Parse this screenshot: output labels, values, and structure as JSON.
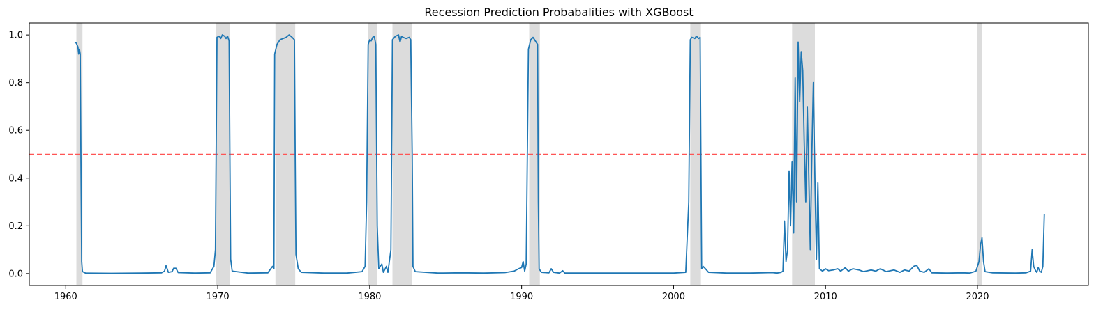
{
  "chart_data": {
    "type": "line",
    "title": "Recession Prediction Probabalities with XGBoost",
    "xlabel": "",
    "ylabel": "",
    "xlim": [
      1957.6,
      2027.3
    ],
    "ylim": [
      -0.05,
      1.05
    ],
    "x_ticks": [
      1960,
      1970,
      1980,
      1990,
      2000,
      2010,
      2020
    ],
    "y_ticks": [
      0.0,
      0.2,
      0.4,
      0.6,
      0.8,
      1.0
    ],
    "y_tick_labels": [
      "0.0",
      "0.2",
      "0.4",
      "0.6",
      "0.8",
      "1.0"
    ],
    "grid": false,
    "threshold": 0.5,
    "colors": {
      "line": "#1f77b4",
      "threshold": "#ff5555",
      "recession_shade": "#dcdcdc"
    },
    "recession_periods": [
      [
        1960.7,
        1961.1
      ],
      [
        1969.9,
        1970.8
      ],
      [
        1973.8,
        1975.1
      ],
      [
        1979.9,
        1980.5
      ],
      [
        1981.5,
        1982.8
      ],
      [
        1990.5,
        1991.2
      ],
      [
        2001.1,
        2001.8
      ],
      [
        2007.8,
        2009.3
      ],
      [
        2020.0,
        2020.3
      ]
    ],
    "series": [
      {
        "points": [
          [
            1960.6,
            0.97
          ],
          [
            1960.7,
            0.965
          ],
          [
            1960.8,
            0.95
          ],
          [
            1960.85,
            0.92
          ],
          [
            1960.9,
            0.94
          ],
          [
            1960.95,
            0.92
          ],
          [
            1961.0,
            0.5
          ],
          [
            1961.05,
            0.05
          ],
          [
            1961.1,
            0.008
          ],
          [
            1961.3,
            0.002
          ],
          [
            1963,
            0.001
          ],
          [
            1965,
            0.002
          ],
          [
            1966.3,
            0.003
          ],
          [
            1966.5,
            0.01
          ],
          [
            1966.6,
            0.033
          ],
          [
            1966.75,
            0.005
          ],
          [
            1967.0,
            0.008
          ],
          [
            1967.1,
            0.022
          ],
          [
            1967.25,
            0.022
          ],
          [
            1967.4,
            0.004
          ],
          [
            1968.5,
            0.002
          ],
          [
            1969.5,
            0.003
          ],
          [
            1969.75,
            0.03
          ],
          [
            1969.85,
            0.1
          ],
          [
            1969.95,
            0.99
          ],
          [
            1970.1,
            0.995
          ],
          [
            1970.2,
            0.985
          ],
          [
            1970.3,
            1.0
          ],
          [
            1970.45,
            0.995
          ],
          [
            1970.55,
            0.985
          ],
          [
            1970.65,
            0.995
          ],
          [
            1970.75,
            0.975
          ],
          [
            1970.8,
            0.5
          ],
          [
            1970.85,
            0.06
          ],
          [
            1970.95,
            0.01
          ],
          [
            1972,
            0.002
          ],
          [
            1973.3,
            0.003
          ],
          [
            1973.6,
            0.03
          ],
          [
            1973.7,
            0.02
          ],
          [
            1973.75,
            0.92
          ],
          [
            1973.9,
            0.96
          ],
          [
            1974.1,
            0.98
          ],
          [
            1974.3,
            0.985
          ],
          [
            1974.5,
            0.99
          ],
          [
            1974.7,
            1.0
          ],
          [
            1974.9,
            0.99
          ],
          [
            1975.05,
            0.98
          ],
          [
            1975.1,
            0.5
          ],
          [
            1975.15,
            0.08
          ],
          [
            1975.3,
            0.02
          ],
          [
            1975.5,
            0.005
          ],
          [
            1977,
            0.002
          ],
          [
            1978.5,
            0.002
          ],
          [
            1979.5,
            0.008
          ],
          [
            1979.7,
            0.03
          ],
          [
            1979.8,
            0.3
          ],
          [
            1979.9,
            0.96
          ],
          [
            1980.0,
            0.98
          ],
          [
            1980.1,
            0.975
          ],
          [
            1980.2,
            0.99
          ],
          [
            1980.3,
            0.995
          ],
          [
            1980.4,
            0.96
          ],
          [
            1980.5,
            0.2
          ],
          [
            1980.6,
            0.02
          ],
          [
            1980.8,
            0.04
          ],
          [
            1980.9,
            0.005
          ],
          [
            1981.1,
            0.03
          ],
          [
            1981.2,
            0.005
          ],
          [
            1981.4,
            0.1
          ],
          [
            1981.5,
            0.98
          ],
          [
            1981.7,
            0.995
          ],
          [
            1981.9,
            1.0
          ],
          [
            1982.0,
            0.97
          ],
          [
            1982.1,
            0.995
          ],
          [
            1982.2,
            0.99
          ],
          [
            1982.4,
            0.985
          ],
          [
            1982.6,
            0.99
          ],
          [
            1982.7,
            0.98
          ],
          [
            1982.8,
            0.5
          ],
          [
            1982.85,
            0.03
          ],
          [
            1983.0,
            0.008
          ],
          [
            1984.5,
            0.002
          ],
          [
            1986,
            0.003
          ],
          [
            1987.5,
            0.002
          ],
          [
            1988.9,
            0.004
          ],
          [
            1989.5,
            0.01
          ],
          [
            1989.8,
            0.02
          ],
          [
            1990.0,
            0.025
          ],
          [
            1990.1,
            0.05
          ],
          [
            1990.2,
            0.01
          ],
          [
            1990.3,
            0.04
          ],
          [
            1990.45,
            0.94
          ],
          [
            1990.6,
            0.98
          ],
          [
            1990.75,
            0.99
          ],
          [
            1990.85,
            0.98
          ],
          [
            1990.95,
            0.97
          ],
          [
            1991.05,
            0.96
          ],
          [
            1991.1,
            0.3
          ],
          [
            1991.15,
            0.02
          ],
          [
            1991.3,
            0.005
          ],
          [
            1991.8,
            0.003
          ],
          [
            1991.95,
            0.02
          ],
          [
            1992.1,
            0.005
          ],
          [
            1992.5,
            0.002
          ],
          [
            1992.7,
            0.012
          ],
          [
            1992.85,
            0.002
          ],
          [
            1994,
            0.002
          ],
          [
            1996,
            0.002
          ],
          [
            1998,
            0.002
          ],
          [
            2000,
            0.002
          ],
          [
            2000.8,
            0.005
          ],
          [
            2001.0,
            0.3
          ],
          [
            2001.1,
            0.98
          ],
          [
            2001.2,
            0.99
          ],
          [
            2001.4,
            0.985
          ],
          [
            2001.5,
            0.995
          ],
          [
            2001.65,
            0.985
          ],
          [
            2001.75,
            0.99
          ],
          [
            2001.85,
            0.02
          ],
          [
            2001.95,
            0.03
          ],
          [
            2002.1,
            0.02
          ],
          [
            2002.3,
            0.005
          ],
          [
            2003.5,
            0.002
          ],
          [
            2005,
            0.002
          ],
          [
            2006.5,
            0.004
          ],
          [
            2006.8,
            0.002
          ],
          [
            2007.0,
            0.004
          ],
          [
            2007.1,
            0.006
          ],
          [
            2007.2,
            0.01
          ],
          [
            2007.3,
            0.22
          ],
          [
            2007.4,
            0.05
          ],
          [
            2007.5,
            0.1
          ],
          [
            2007.6,
            0.43
          ],
          [
            2007.7,
            0.2
          ],
          [
            2007.8,
            0.47
          ],
          [
            2007.9,
            0.17
          ],
          [
            2008.0,
            0.82
          ],
          [
            2008.1,
            0.3
          ],
          [
            2008.2,
            0.97
          ],
          [
            2008.3,
            0.72
          ],
          [
            2008.4,
            0.93
          ],
          [
            2008.5,
            0.85
          ],
          [
            2008.6,
            0.55
          ],
          [
            2008.7,
            0.3
          ],
          [
            2008.8,
            0.7
          ],
          [
            2008.9,
            0.4
          ],
          [
            2009.0,
            0.1
          ],
          [
            2009.1,
            0.5
          ],
          [
            2009.2,
            0.8
          ],
          [
            2009.3,
            0.4
          ],
          [
            2009.4,
            0.06
          ],
          [
            2009.5,
            0.38
          ],
          [
            2009.6,
            0.02
          ],
          [
            2009.8,
            0.01
          ],
          [
            2010.0,
            0.02
          ],
          [
            2010.2,
            0.012
          ],
          [
            2010.5,
            0.015
          ],
          [
            2010.8,
            0.02
          ],
          [
            2011.0,
            0.01
          ],
          [
            2011.3,
            0.025
          ],
          [
            2011.5,
            0.01
          ],
          [
            2011.8,
            0.02
          ],
          [
            2012.2,
            0.015
          ],
          [
            2012.5,
            0.008
          ],
          [
            2013.0,
            0.015
          ],
          [
            2013.3,
            0.01
          ],
          [
            2013.6,
            0.02
          ],
          [
            2014.0,
            0.008
          ],
          [
            2014.5,
            0.015
          ],
          [
            2014.9,
            0.005
          ],
          [
            2015.2,
            0.015
          ],
          [
            2015.5,
            0.01
          ],
          [
            2015.8,
            0.03
          ],
          [
            2016.0,
            0.035
          ],
          [
            2016.2,
            0.01
          ],
          [
            2016.5,
            0.005
          ],
          [
            2016.8,
            0.02
          ],
          [
            2017.0,
            0.003
          ],
          [
            2018.0,
            0.002
          ],
          [
            2019.0,
            0.003
          ],
          [
            2019.5,
            0.002
          ],
          [
            2019.9,
            0.01
          ],
          [
            2020.1,
            0.05
          ],
          [
            2020.2,
            0.12
          ],
          [
            2020.3,
            0.15
          ],
          [
            2020.4,
            0.05
          ],
          [
            2020.5,
            0.008
          ],
          [
            2021,
            0.003
          ],
          [
            2022.5,
            0.002
          ],
          [
            2023.2,
            0.003
          ],
          [
            2023.5,
            0.01
          ],
          [
            2023.6,
            0.1
          ],
          [
            2023.7,
            0.03
          ],
          [
            2023.8,
            0.015
          ],
          [
            2023.9,
            0.005
          ],
          [
            2024.0,
            0.025
          ],
          [
            2024.1,
            0.01
          ],
          [
            2024.2,
            0.005
          ],
          [
            2024.3,
            0.03
          ],
          [
            2024.4,
            0.25
          ]
        ]
      }
    ]
  }
}
